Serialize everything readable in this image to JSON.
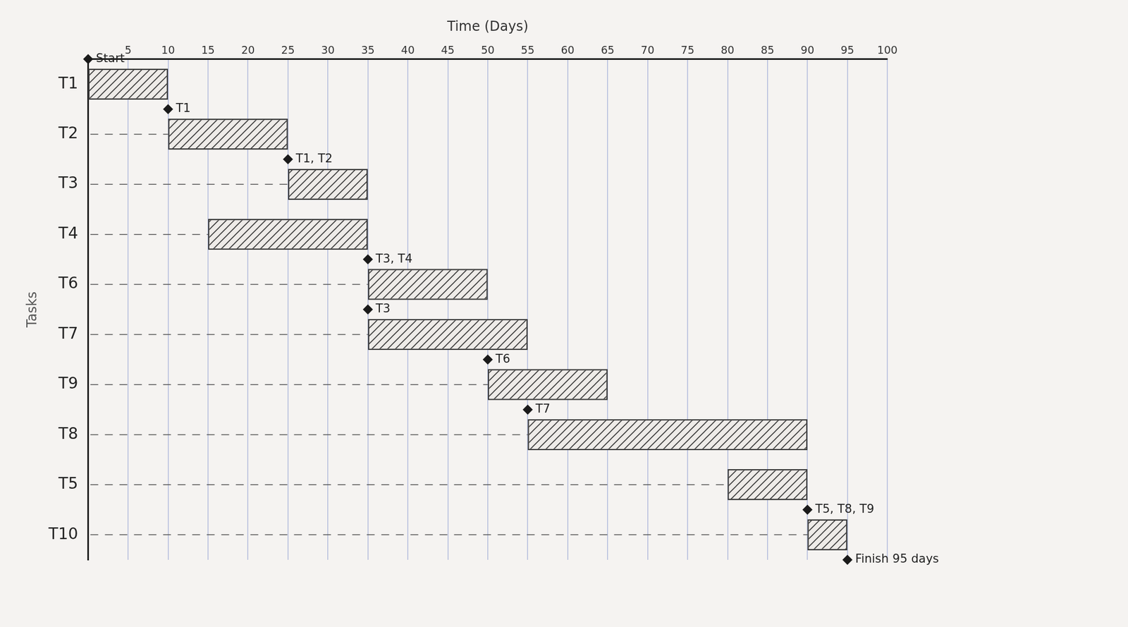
{
  "chart_data": {
    "type": "bar",
    "orientation": "horizontal",
    "x_label": "Time (Days)",
    "y_label": "Tasks",
    "categories": [
      "T1",
      "T2",
      "T3",
      "T4",
      "T6",
      "T7",
      "T9",
      "T8",
      "T5",
      "T10"
    ],
    "values": [
      [
        0,
        10
      ],
      [
        10,
        25
      ],
      [
        25,
        35
      ],
      [
        15,
        35
      ],
      [
        35,
        50
      ],
      [
        35,
        55
      ],
      [
        50,
        65
      ],
      [
        55,
        90
      ],
      [
        80,
        90
      ],
      [
        90,
        95
      ]
    ],
    "color": "#3a3a3a",
    "xlim": [
      0,
      100
    ],
    "xticks": [
      5,
      10,
      15,
      20,
      25,
      30,
      35,
      40,
      45,
      50,
      55,
      60,
      65,
      70,
      75,
      80,
      85,
      90,
      95,
      100
    ],
    "grid": true,
    "milestones": [
      {
        "label": "Start",
        "x": 0,
        "before": "T1"
      },
      {
        "label": "T1",
        "x": 10,
        "before": "T2"
      },
      {
        "label": "T1, T2",
        "x": 25,
        "before": "T3"
      },
      {
        "label": "T3, T4",
        "x": 35,
        "before": "T6"
      },
      {
        "label": "T3",
        "x": 35,
        "before": "T7"
      },
      {
        "label": "T6",
        "x": 50,
        "before": "T9"
      },
      {
        "label": "T7",
        "x": 55,
        "before": "T8"
      },
      {
        "label": "T5, T8, T9",
        "x": 90,
        "before": "T10"
      },
      {
        "label": "Finish 95 days",
        "x": 95,
        "after": "T10"
      }
    ]
  }
}
